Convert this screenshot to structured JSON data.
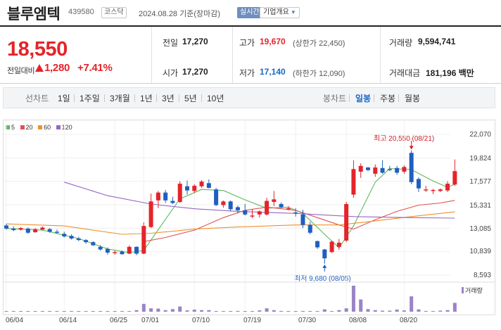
{
  "header": {
    "name": "블루엠텍",
    "code": "439580",
    "market": "코스닥",
    "date_text": "2024.08.28  기준(장마감)",
    "live_badge": "실시간",
    "corp_badge": "기업개요"
  },
  "quote": {
    "price": "18,550",
    "change_label": "전일대비",
    "change_value": "1,280",
    "change_pct": "+7.41%",
    "prev_close_label": "전일",
    "prev_close": "17,270",
    "open_label": "시가",
    "open": "17,270",
    "high_label": "고가",
    "high": "19,670",
    "upper_limit": "(상한가 22,450)",
    "low_label": "저가",
    "low": "17,140",
    "lower_limit": "(하한가 12,090)",
    "volume_label": "거래량",
    "volume": "9,594,741",
    "amount_label": "거래대금",
    "amount": "181,196 백만"
  },
  "periods": {
    "line_chart_label": "선차트",
    "line_items": [
      "1일",
      "1주일",
      "3개월",
      "1년",
      "3년",
      "5년",
      "10년"
    ],
    "candle_chart_label": "봉차트",
    "candle_items": [
      "일봉",
      "주봉",
      "월봉"
    ],
    "active_candle": "일봉"
  },
  "legend": [
    {
      "label": "5",
      "color": "#5cb85c"
    },
    {
      "label": "20",
      "color": "#e05252"
    },
    {
      "label": "60",
      "color": "#f0902a"
    },
    {
      "label": "120",
      "color": "#9566c5"
    }
  ],
  "colors": {
    "up": "#e4242a",
    "down": "#1f5fbf",
    "volume": "#9b83c7"
  },
  "annotations": {
    "high": "최고 20,550 (08/21)",
    "low": "최저 9,680 (08/05)"
  },
  "volume_label": "거래량",
  "chart_data": {
    "type": "candlestick",
    "y_ticks": [
      "22,070",
      "19,824",
      "17,577",
      "15,331",
      "13,085",
      "10,839",
      "8,593"
    ],
    "ylim": [
      8593,
      22070
    ],
    "x_ticks": [
      {
        "label": "06/04",
        "index": 0
      },
      {
        "label": "06/14",
        "index": 8
      },
      {
        "label": "06/25",
        "index": 15
      },
      {
        "label": "07/01",
        "index": 19
      },
      {
        "label": "07/10",
        "index": 26
      },
      {
        "label": "07/19",
        "index": 33
      },
      {
        "label": "07/30",
        "index": 40
      },
      {
        "label": "08/08",
        "index": 47
      },
      {
        "label": "08/20",
        "index": 55
      }
    ],
    "candles": [
      {
        "o": 13350,
        "h": 13500,
        "l": 12950,
        "c": 13050
      },
      {
        "o": 13050,
        "h": 13250,
        "l": 12800,
        "c": 12900
      },
      {
        "o": 12950,
        "h": 13200,
        "l": 12850,
        "c": 13100
      },
      {
        "o": 13050,
        "h": 13150,
        "l": 12550,
        "c": 12650
      },
      {
        "o": 12700,
        "h": 13100,
        "l": 12650,
        "c": 13000
      },
      {
        "o": 12950,
        "h": 13250,
        "l": 12900,
        "c": 13150
      },
      {
        "o": 13000,
        "h": 13100,
        "l": 12650,
        "c": 12750
      },
      {
        "o": 12750,
        "h": 12950,
        "l": 12550,
        "c": 12650
      },
      {
        "o": 12550,
        "h": 12750,
        "l": 12200,
        "c": 12300
      },
      {
        "o": 12350,
        "h": 12500,
        "l": 12000,
        "c": 12100
      },
      {
        "o": 12100,
        "h": 12250,
        "l": 11850,
        "c": 11950
      },
      {
        "o": 11950,
        "h": 12050,
        "l": 11600,
        "c": 11750
      },
      {
        "o": 11750,
        "h": 11850,
        "l": 11400,
        "c": 11450
      },
      {
        "o": 11300,
        "h": 11450,
        "l": 10950,
        "c": 11050
      },
      {
        "o": 11100,
        "h": 11250,
        "l": 10550,
        "c": 10750
      },
      {
        "o": 10700,
        "h": 10950,
        "l": 10550,
        "c": 10800
      },
      {
        "o": 10850,
        "h": 10950,
        "l": 10550,
        "c": 10600
      },
      {
        "o": 10650,
        "h": 11450,
        "l": 10600,
        "c": 11300
      },
      {
        "o": 11300,
        "h": 11350,
        "l": 10500,
        "c": 10650
      },
      {
        "o": 10650,
        "h": 13650,
        "l": 10600,
        "c": 13300
      },
      {
        "o": 13200,
        "h": 16400,
        "l": 13100,
        "c": 15650
      },
      {
        "o": 15750,
        "h": 16650,
        "l": 15000,
        "c": 16500
      },
      {
        "o": 16500,
        "h": 16750,
        "l": 15500,
        "c": 15750
      },
      {
        "o": 15700,
        "h": 16100,
        "l": 15400,
        "c": 15500
      },
      {
        "o": 15600,
        "h": 17600,
        "l": 15500,
        "c": 17350
      },
      {
        "o": 17100,
        "h": 17650,
        "l": 16300,
        "c": 16700
      },
      {
        "o": 16650,
        "h": 17300,
        "l": 16450,
        "c": 17150
      },
      {
        "o": 17100,
        "h": 17700,
        "l": 16950,
        "c": 17550
      },
      {
        "o": 17400,
        "h": 17750,
        "l": 16900,
        "c": 16950
      },
      {
        "o": 16800,
        "h": 16950,
        "l": 15200,
        "c": 15300
      },
      {
        "o": 15300,
        "h": 15750,
        "l": 15050,
        "c": 15650
      },
      {
        "o": 15650,
        "h": 15750,
        "l": 14700,
        "c": 14900
      },
      {
        "o": 15100,
        "h": 15250,
        "l": 14500,
        "c": 14800
      },
      {
        "o": 14800,
        "h": 15400,
        "l": 14300,
        "c": 14400
      },
      {
        "o": 14300,
        "h": 14900,
        "l": 14050,
        "c": 14300
      },
      {
        "o": 14400,
        "h": 14800,
        "l": 14100,
        "c": 14700
      },
      {
        "o": 14400,
        "h": 16000,
        "l": 14300,
        "c": 15700
      },
      {
        "o": 15600,
        "h": 16650,
        "l": 15200,
        "c": 15850
      },
      {
        "o": 15400,
        "h": 15550,
        "l": 15000,
        "c": 15100
      },
      {
        "o": 15000,
        "h": 15200,
        "l": 14800,
        "c": 15000
      },
      {
        "o": 14600,
        "h": 15000,
        "l": 14200,
        "c": 14500
      },
      {
        "o": 14400,
        "h": 14850,
        "l": 13100,
        "c": 13400
      },
      {
        "o": 13400,
        "h": 13700,
        "l": 12500,
        "c": 12650
      },
      {
        "o": 11850,
        "h": 11900,
        "l": 11100,
        "c": 11250
      },
      {
        "o": 11050,
        "h": 11100,
        "l": 9680,
        "c": 10200
      },
      {
        "o": 10800,
        "h": 11900,
        "l": 10700,
        "c": 11800
      },
      {
        "o": 11300,
        "h": 12050,
        "l": 11000,
        "c": 11700
      },
      {
        "o": 11900,
        "h": 15600,
        "l": 11750,
        "c": 15400
      },
      {
        "o": 16300,
        "h": 19600,
        "l": 16000,
        "c": 18750
      },
      {
        "o": 18500,
        "h": 19300,
        "l": 17900,
        "c": 19050
      },
      {
        "o": 18900,
        "h": 18950,
        "l": 18550,
        "c": 18650
      },
      {
        "o": 18300,
        "h": 19200,
        "l": 18000,
        "c": 18900
      },
      {
        "o": 18850,
        "h": 19600,
        "l": 18300,
        "c": 18400
      },
      {
        "o": 18750,
        "h": 19050,
        "l": 18550,
        "c": 18700
      },
      {
        "o": 18850,
        "h": 19050,
        "l": 18200,
        "c": 18400
      },
      {
        "o": 18500,
        "h": 19100,
        "l": 18300,
        "c": 18950
      },
      {
        "o": 20300,
        "h": 20550,
        "l": 17300,
        "c": 17500
      },
      {
        "o": 17800,
        "h": 17950,
        "l": 16550,
        "c": 16900
      },
      {
        "o": 16700,
        "h": 17150,
        "l": 16550,
        "c": 16800
      },
      {
        "o": 16650,
        "h": 16850,
        "l": 16350,
        "c": 16750
      },
      {
        "o": 16650,
        "h": 16900,
        "l": 16550,
        "c": 16800
      },
      {
        "o": 16700,
        "h": 17600,
        "l": 16550,
        "c": 17350
      },
      {
        "o": 17270,
        "h": 19670,
        "l": 17140,
        "c": 18550
      }
    ],
    "ma": {
      "5": [
        [
          0,
          13060
        ],
        [
          5,
          12900
        ],
        [
          10,
          12100
        ],
        [
          14,
          11100
        ],
        [
          17,
          10750
        ],
        [
          19,
          10950
        ],
        [
          21,
          12950
        ],
        [
          24,
          15900
        ],
        [
          27,
          16800
        ],
        [
          30,
          16700
        ],
        [
          33,
          15800
        ],
        [
          36,
          15000
        ],
        [
          39,
          15100
        ],
        [
          41,
          14500
        ],
        [
          44,
          12500
        ],
        [
          46,
          11200
        ],
        [
          48,
          13300
        ],
        [
          51,
          17500
        ],
        [
          53,
          18800
        ],
        [
          56,
          18700
        ],
        [
          59,
          17600
        ],
        [
          61,
          17000
        ],
        [
          62,
          17300
        ]
      ],
      "20": [
        [
          19,
          11800
        ],
        [
          22,
          12200
        ],
        [
          26,
          12900
        ],
        [
          30,
          14100
        ],
        [
          33,
          14800
        ],
        [
          36,
          15100
        ],
        [
          40,
          14800
        ],
        [
          43,
          14100
        ],
        [
          46,
          13400
        ],
        [
          48,
          13000
        ],
        [
          51,
          13900
        ],
        [
          54,
          14700
        ],
        [
          57,
          15300
        ],
        [
          60,
          15500
        ],
        [
          62,
          15750
        ]
      ],
      "60": [
        [
          0,
          13500
        ],
        [
          8,
          13300
        ],
        [
          16,
          12500
        ],
        [
          20,
          12600
        ],
        [
          26,
          13000
        ],
        [
          32,
          13200
        ],
        [
          40,
          13400
        ],
        [
          46,
          13400
        ],
        [
          50,
          13700
        ],
        [
          56,
          14200
        ],
        [
          62,
          14650
        ]
      ],
      "120": [
        [
          8,
          17500
        ],
        [
          14,
          16200
        ],
        [
          20,
          15400
        ],
        [
          26,
          14950
        ],
        [
          32,
          14700
        ],
        [
          40,
          14500
        ],
        [
          48,
          14200
        ],
        [
          56,
          14100
        ],
        [
          62,
          14050
        ]
      ]
    },
    "volume": [
      0.01,
      0.01,
      0.01,
      0.01,
      0.01,
      0.01,
      0.01,
      0.01,
      0.01,
      0.01,
      0.01,
      0.01,
      0.01,
      0.01,
      0.01,
      0.01,
      0.01,
      0.01,
      0.06,
      0.3,
      0.13,
      0.12,
      0.06,
      0.1,
      0.2,
      0.05,
      0.08,
      0.06,
      0.06,
      0.02,
      0.02,
      0.02,
      0.03,
      0.02,
      0.02,
      0.05,
      0.13,
      0.06,
      0.03,
      0.02,
      0.02,
      0.03,
      0.02,
      0.02,
      0.09,
      0.02,
      0.06,
      0.13,
      1.0,
      0.47,
      0.1,
      0.06,
      0.04,
      0.04,
      0.08,
      0.05,
      0.59,
      0.09,
      0.03,
      0.02,
      0.04,
      0.06,
      0.34
    ]
  }
}
